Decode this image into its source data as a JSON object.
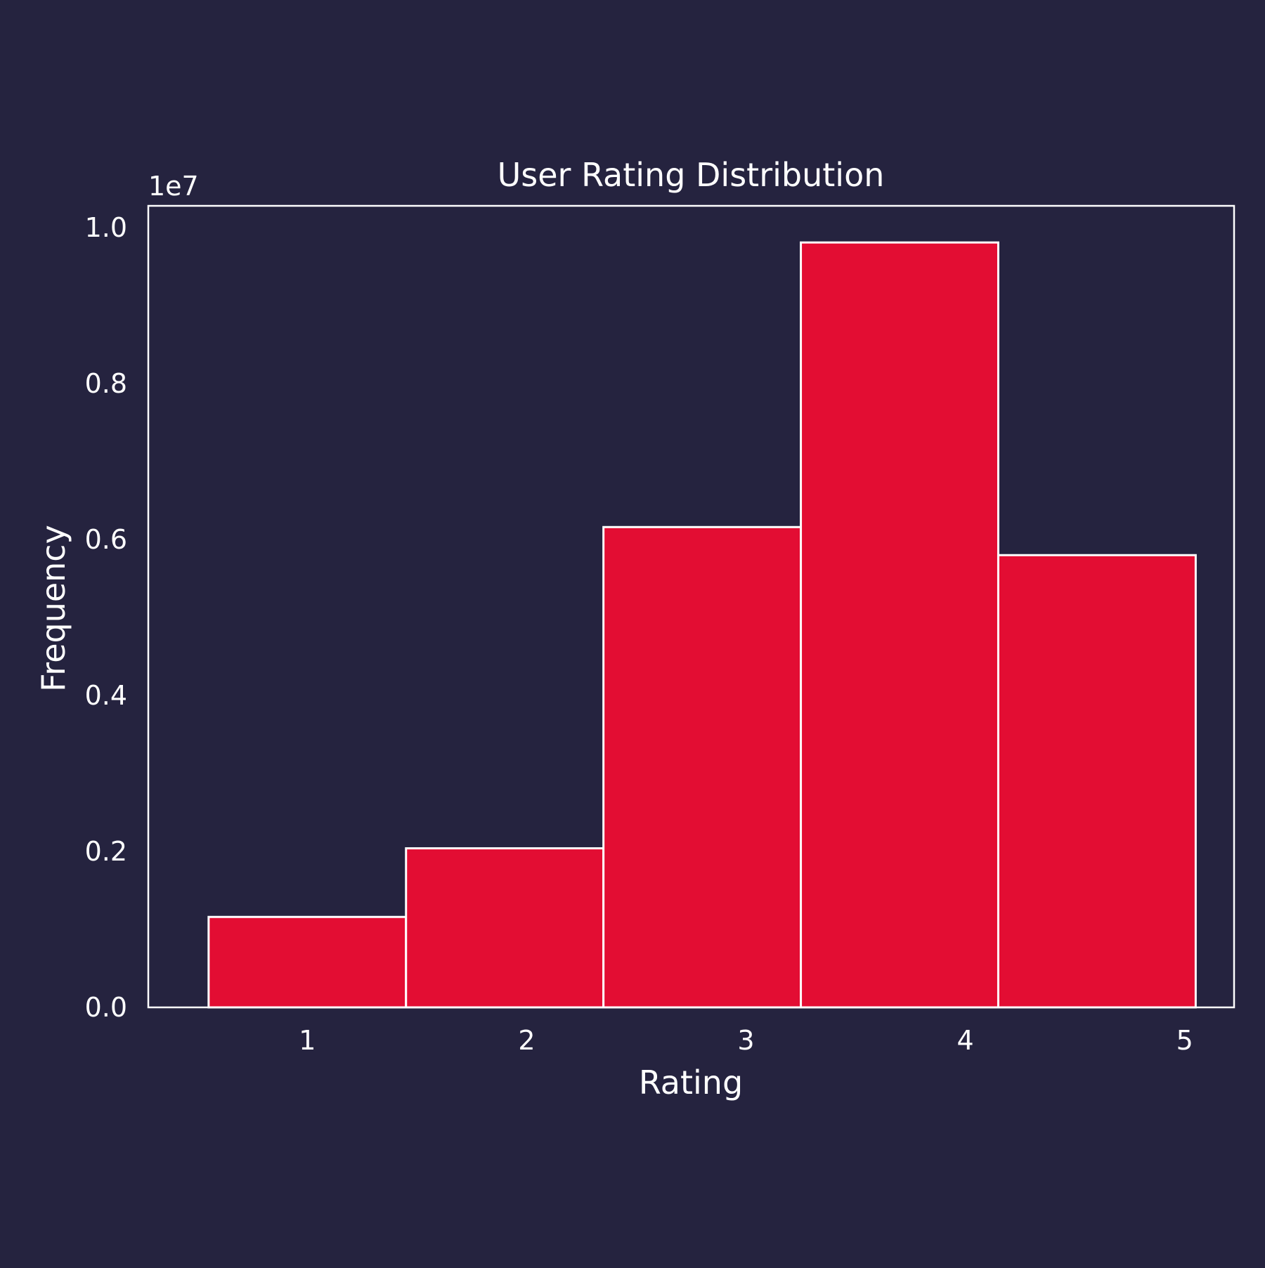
{
  "colors": {
    "background": "#25233f",
    "bar_fill": "#e30d33",
    "bar_edge": "#ffffff",
    "axis": "#ffffff",
    "text": "#ffffff"
  },
  "chart_data": {
    "type": "bar",
    "title": "User Rating Distribution",
    "xlabel": "Rating",
    "ylabel": "Frequency",
    "y_scale_label": "1e7",
    "y_multiplier": 10000000,
    "bins": [
      {
        "start": 0.55,
        "end": 1.45
      },
      {
        "start": 1.45,
        "end": 2.35
      },
      {
        "start": 2.35,
        "end": 3.25
      },
      {
        "start": 3.25,
        "end": 4.15
      },
      {
        "start": 4.15,
        "end": 5.05
      }
    ],
    "values": [
      1160000,
      2040000,
      6160000,
      9810000,
      5800000
    ],
    "xlim": [
      0.275,
      5.225
    ],
    "ylim": [
      0,
      10280000
    ],
    "xticks": [
      1,
      2,
      3,
      4,
      5
    ],
    "xtick_labels": [
      "1",
      "2",
      "3",
      "4",
      "5"
    ],
    "yticks": [
      0,
      2000000,
      4000000,
      6000000,
      8000000,
      10000000
    ],
    "ytick_labels": [
      "0.0",
      "0.2",
      "0.4",
      "0.6",
      "0.8",
      "1.0"
    ],
    "grid": false,
    "legend": "none"
  }
}
